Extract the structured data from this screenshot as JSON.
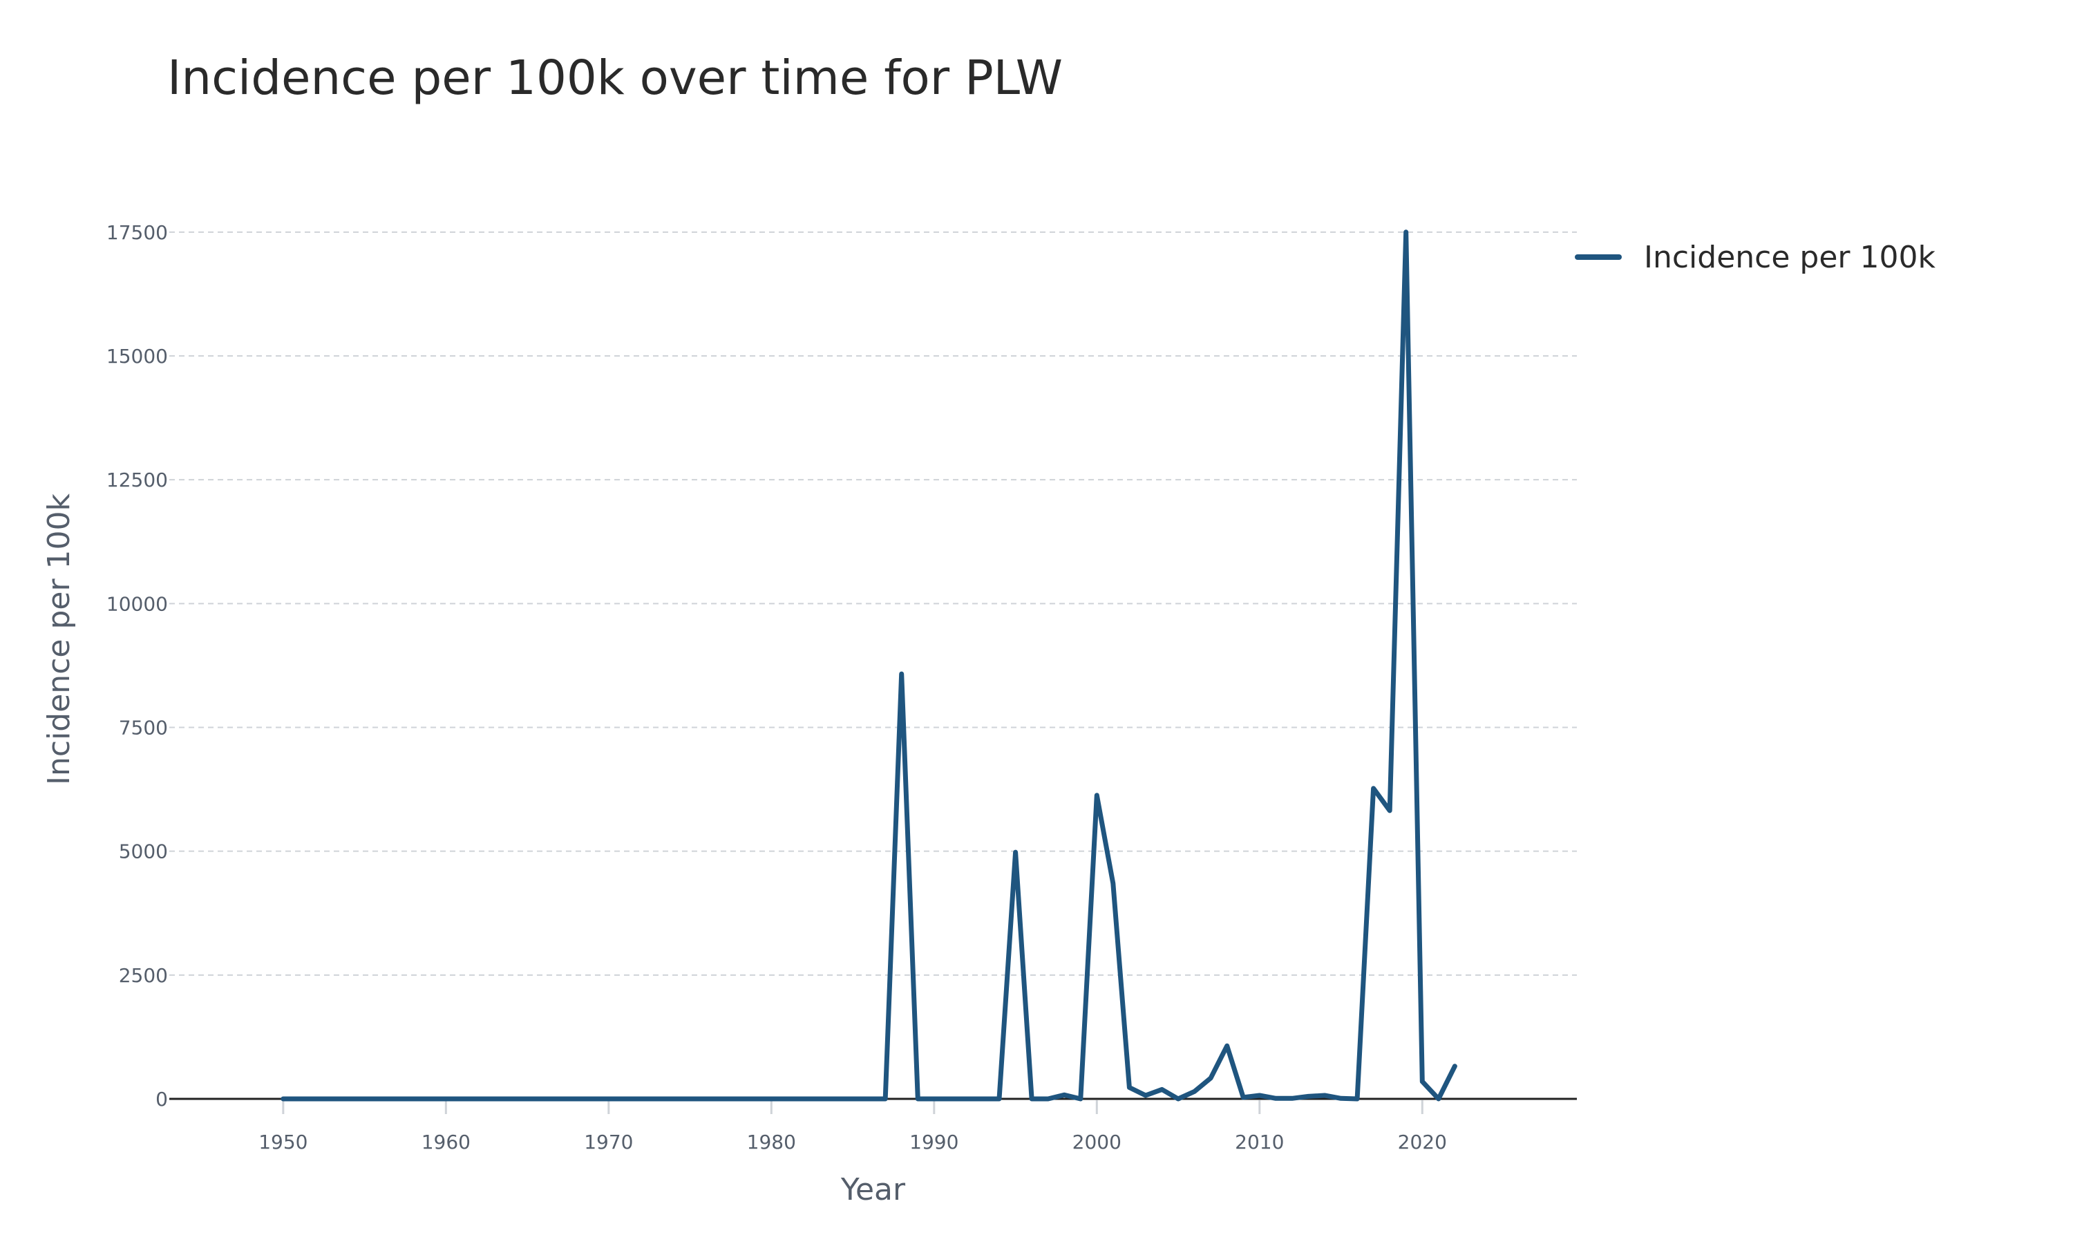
{
  "chart_data": {
    "type": "line",
    "title": "Incidence per 100k over time for PLW",
    "xlabel": "Year",
    "ylabel": "Incidence per 100k",
    "xlim": [
      1943,
      2029.5
    ],
    "ylim": [
      0,
      18000
    ],
    "x_ticks": [
      1950,
      1960,
      1970,
      1980,
      1990,
      2000,
      2010,
      2020
    ],
    "y_ticks": [
      0,
      2500,
      5000,
      7500,
      10000,
      12500,
      15000,
      17500
    ],
    "grid": true,
    "legend_position": "top-right",
    "colors": {
      "series": "#1f557f"
    },
    "series": [
      {
        "name": "Incidence per 100k",
        "x": [
          1950,
          1951,
          1952,
          1953,
          1954,
          1955,
          1956,
          1957,
          1958,
          1959,
          1960,
          1961,
          1962,
          1963,
          1964,
          1965,
          1966,
          1967,
          1968,
          1969,
          1970,
          1971,
          1972,
          1973,
          1974,
          1975,
          1976,
          1977,
          1978,
          1979,
          1980,
          1981,
          1982,
          1983,
          1984,
          1985,
          1986,
          1987,
          1988,
          1989,
          1990,
          1991,
          1992,
          1993,
          1994,
          1995,
          1996,
          1997,
          1998,
          1999,
          2000,
          2001,
          2002,
          2003,
          2004,
          2005,
          2006,
          2007,
          2008,
          2009,
          2010,
          2011,
          2012,
          2013,
          2014,
          2015,
          2016,
          2017,
          2018,
          2019,
          2020,
          2021,
          2022
        ],
        "values": [
          0,
          0,
          0,
          0,
          0,
          0,
          0,
          0,
          0,
          0,
          0,
          0,
          0,
          0,
          0,
          0,
          0,
          0,
          0,
          0,
          0,
          0,
          0,
          0,
          0,
          0,
          0,
          0,
          0,
          0,
          0,
          0,
          0,
          0,
          0,
          0,
          0,
          0,
          8580,
          0,
          0,
          0,
          0,
          0,
          0,
          4980,
          0,
          0,
          80,
          0,
          6130,
          4350,
          230,
          70,
          190,
          0,
          150,
          420,
          1070,
          30,
          70,
          10,
          10,
          50,
          70,
          10,
          0,
          6270,
          5820,
          17500,
          350,
          0,
          660
        ]
      }
    ]
  }
}
